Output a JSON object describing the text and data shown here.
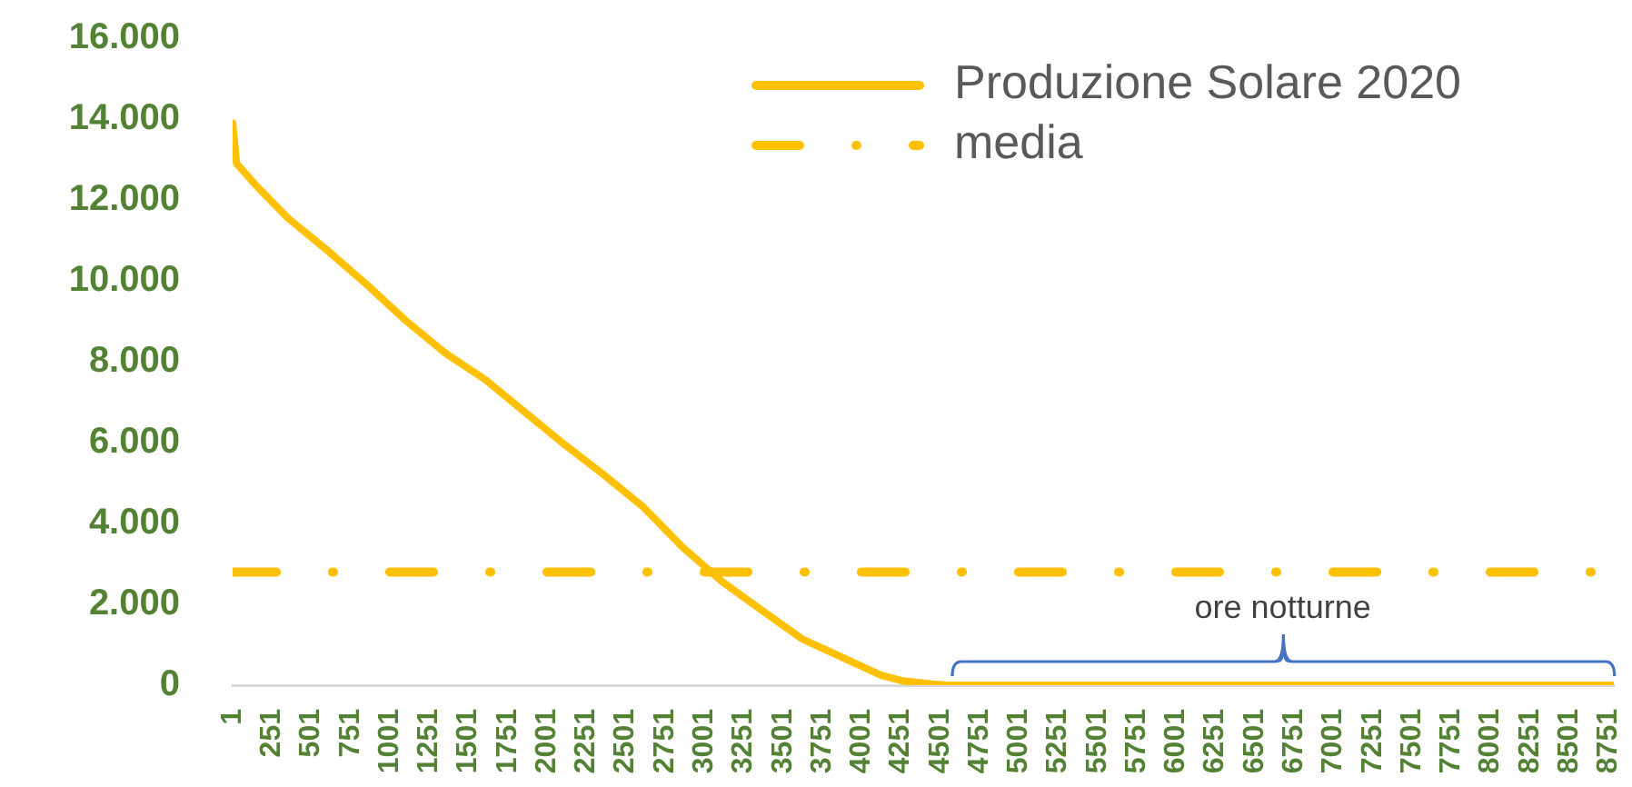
{
  "chart_data": {
    "type": "line",
    "x": [
      1,
      26,
      152,
      353,
      604,
      856,
      1107,
      1358,
      1610,
      1860,
      2112,
      2363,
      2614,
      2866,
      3117,
      3368,
      3620,
      3871,
      4122,
      4270,
      4450,
      4550,
      8784
    ],
    "series": [
      {
        "name": "Produzione Solare 2020",
        "color": "#ffc000",
        "values": [
          13900,
          12900,
          12350,
          11550,
          10750,
          9900,
          9000,
          8200,
          7550,
          6750,
          5950,
          5200,
          4400,
          3400,
          2550,
          1850,
          1150,
          700,
          250,
          100,
          30,
          0,
          0
        ]
      }
    ],
    "xlim": [
      1,
      8784
    ],
    "xticks": [
      1,
      251,
      501,
      751,
      1001,
      1251,
      1501,
      1751,
      2001,
      2251,
      2501,
      2751,
      3001,
      3251,
      3501,
      3751,
      4001,
      4251,
      4501,
      4751,
      5001,
      5251,
      5501,
      5751,
      6001,
      6251,
      6501,
      6751,
      7001,
      7251,
      7501,
      7751,
      8001,
      8251,
      8501,
      8751
    ],
    "ylim": [
      0,
      16000
    ],
    "yticks": [
      0,
      {
        "value": 2000,
        "label": "2.000"
      },
      {
        "value": 4000,
        "label": "4.000"
      },
      {
        "value": 6000,
        "label": "6.000"
      },
      {
        "value": 8000,
        "label": "8.000"
      },
      {
        "value": 10000,
        "label": "10.000"
      },
      {
        "value": 12000,
        "label": "12.000"
      },
      {
        "value": 14000,
        "label": "14.000"
      },
      {
        "value": 16000,
        "label": "16.000"
      }
    ],
    "ref_lines": [
      {
        "axis": "y",
        "value": 2800,
        "label": "media",
        "color": "#ffc000",
        "line_style": "dashdot"
      }
    ],
    "annotations": [
      "ore notturne"
    ],
    "legend": "top right",
    "marker": "none"
  }
}
